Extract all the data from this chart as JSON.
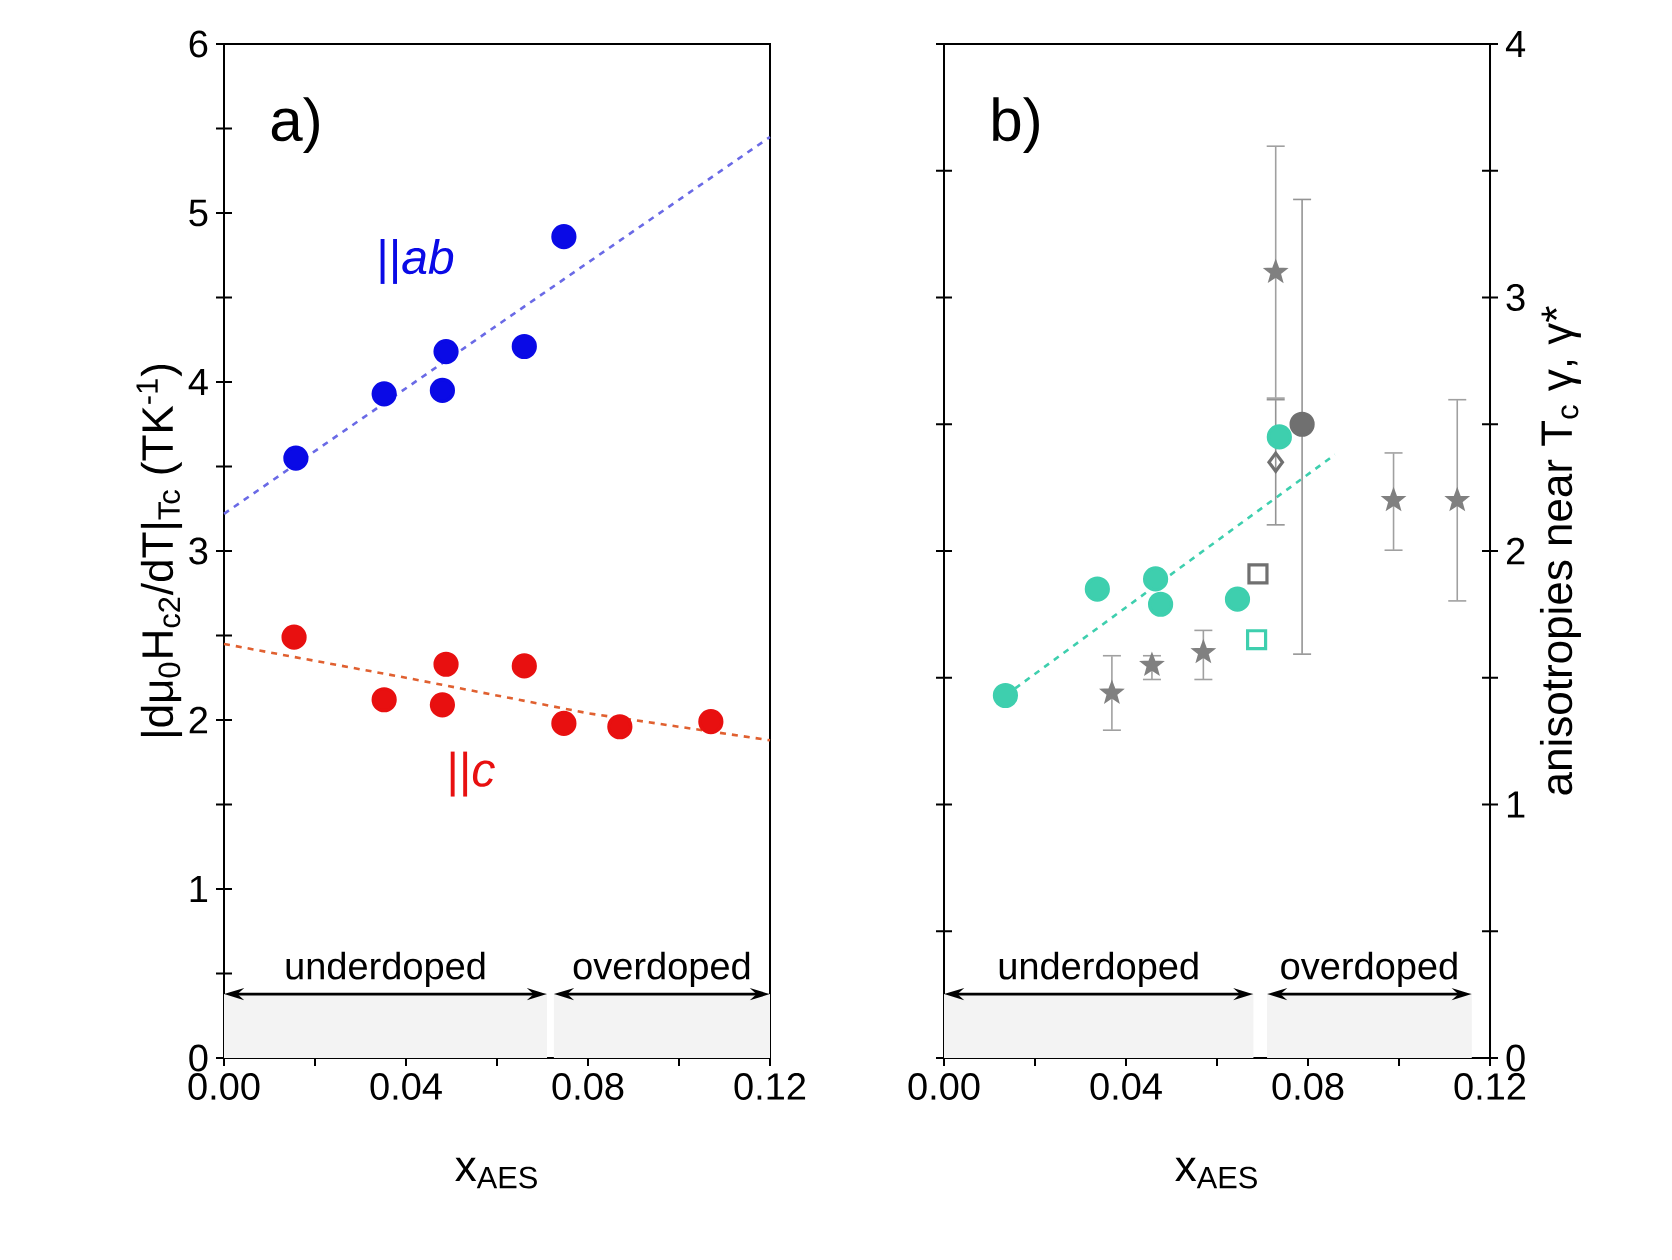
{
  "chart_data": [
    {
      "type": "scatter",
      "xlabel": "x$_{AES}$",
      "ylabel": "|dμ$_{0}$H$_{c2}$/dT|$_{Tc}$  (TK$^{-1}$)",
      "xlim": [
        0,
        0.12
      ],
      "xticks": [
        {
          "value": 0,
          "label": "0.00"
        },
        {
          "value": 0.02,
          "label": null
        },
        {
          "value": 0.04,
          "label": "0.04"
        },
        {
          "value": 0.06,
          "label": null
        },
        {
          "value": 0.08,
          "label": "0.08"
        },
        {
          "value": 0.1,
          "label": null
        },
        {
          "value": 0.12,
          "label": "0.12"
        }
      ],
      "ylim": [
        0,
        6
      ],
      "yticks": [
        0,
        {
          "value": 0.5,
          "label": null
        },
        1,
        {
          "value": 1.5,
          "label": null
        },
        2,
        {
          "value": 2.5,
          "label": null
        },
        3,
        {
          "value": 3.5,
          "label": null
        },
        4,
        {
          "value": 4.5,
          "label": null
        },
        5,
        {
          "value": 5.5,
          "label": null
        },
        6
      ],
      "annotations": [
        "a)"
      ],
      "bands": [
        {
          "axis": "x",
          "from": 0,
          "to": 0.071,
          "label": "underdoped",
          "color": "#f3f3f3"
        },
        {
          "axis": "x",
          "from": 0.0725,
          "to": 0.12,
          "label": "overdoped",
          "color": "#f3f3f3"
        }
      ],
      "series": [
        {
          "name": "||*ab*",
          "type": "scatter",
          "marker": "circle",
          "color": "#0a0ae6",
          "x": [
            0.0158,
            0.0352,
            0.048,
            0.0488,
            0.066,
            0.0747
          ],
          "values": [
            3.55,
            3.93,
            3.95,
            4.18,
            4.21,
            4.86
          ]
        },
        {
          "type": "line",
          "line_style": "dashed",
          "marker": "none",
          "color": "#6a6ae6",
          "x": [
            0,
            0.12
          ],
          "values": [
            3.22,
            5.45
          ]
        },
        {
          "name": "||*c*",
          "type": "scatter",
          "marker": "circle",
          "color": "#e81010",
          "x": [
            0.0154,
            0.0352,
            0.048,
            0.0488,
            0.066,
            0.0747,
            0.087,
            0.107
          ],
          "values": [
            2.49,
            2.12,
            2.09,
            2.33,
            2.32,
            1.98,
            1.96,
            1.99
          ]
        },
        {
          "type": "line",
          "line_style": "dashed",
          "marker": "none",
          "color": "#e06030",
          "x": [
            0,
            0.04,
            0.08,
            0.12
          ],
          "values": [
            2.45,
            2.25,
            2.04,
            1.88
          ]
        }
      ]
    },
    {
      "type": "scatter",
      "xlabel": "x$_{AES}$",
      "y2label": "anisotropies near T$_{c}$ γ, γ*",
      "xlim": [
        0,
        0.12
      ],
      "xticks": [
        {
          "value": 0,
          "label": "0.00"
        },
        {
          "value": 0.02,
          "label": null
        },
        {
          "value": 0.04,
          "label": "0.04"
        },
        {
          "value": 0.06,
          "label": null
        },
        {
          "value": 0.08,
          "label": "0.08"
        },
        {
          "value": 0.1,
          "label": null
        },
        {
          "value": 0.12,
          "label": "0.12"
        }
      ],
      "y2lim": [
        0,
        4
      ],
      "y2ticks": [
        0,
        {
          "value": 0.5,
          "label": null
        },
        1,
        {
          "value": 1.5,
          "label": null
        },
        2,
        {
          "value": 2.5,
          "label": null
        },
        3,
        {
          "value": 3.5,
          "label": null
        },
        4
      ],
      "annotations": [
        "b)"
      ],
      "bands": [
        {
          "axis": "x",
          "from": 0,
          "to": 0.068,
          "label": "underdoped",
          "color": "#f3f3f3"
        },
        {
          "axis": "x",
          "from": 0.071,
          "to": 0.116,
          "label": "overdoped",
          "color": "#f3f3f3"
        }
      ],
      "series": [
        {
          "type": "line",
          "axis": "y2",
          "line_style": "dashed",
          "marker": "none",
          "color": "#3ecfae",
          "x": [
            0.0135,
            0.0859
          ],
          "values": [
            1.43,
            2.38
          ]
        },
        {
          "type": "scatter",
          "axis": "y2",
          "marker": "star",
          "color": "#808080",
          "x": [
            0.0369,
            0.0457,
            0.057,
            0.0729,
            0.0988,
            0.1128
          ],
          "values": [
            1.44,
            1.55,
            1.6,
            3.1,
            2.2,
            2.2
          ],
          "errors": [
            [
              1.29,
              1.59
            ],
            [
              1.49,
              1.59
            ],
            [
              1.49,
              1.69
            ],
            [
              2.6,
              3.6
            ],
            [
              2.0,
              2.39
            ],
            [
              1.8,
              2.6
            ]
          ]
        },
        {
          "type": "scatter",
          "axis": "y2",
          "marker": "diamond",
          "color": "#707070",
          "x": [
            0.0729
          ],
          "values": [
            2.35
          ],
          "errors": [
            [
              2.1,
              2.6
            ]
          ]
        },
        {
          "type": "scatter",
          "axis": "y2",
          "marker": "circle",
          "color": "#707070",
          "x": [
            0.0787
          ],
          "values": [
            2.5
          ],
          "errors": [
            [
              1.59,
              3.39
            ]
          ]
        },
        {
          "type": "scatter",
          "axis": "y2",
          "marker": "square",
          "color": "#707070",
          "x": [
            0.069
          ],
          "values": [
            1.91
          ]
        },
        {
          "type": "scatter",
          "axis": "y2",
          "marker": "square",
          "color": "#3ecfae",
          "x": [
            0.0687
          ],
          "values": [
            1.65
          ]
        },
        {
          "type": "scatter",
          "axis": "y2",
          "marker": "circle",
          "color": "#3ecfae",
          "x": [
            0.0135,
            0.0337,
            0.0465,
            0.0476,
            0.0645,
            0.0737
          ],
          "values": [
            1.43,
            1.85,
            1.89,
            1.79,
            1.81,
            2.45
          ]
        }
      ]
    }
  ]
}
